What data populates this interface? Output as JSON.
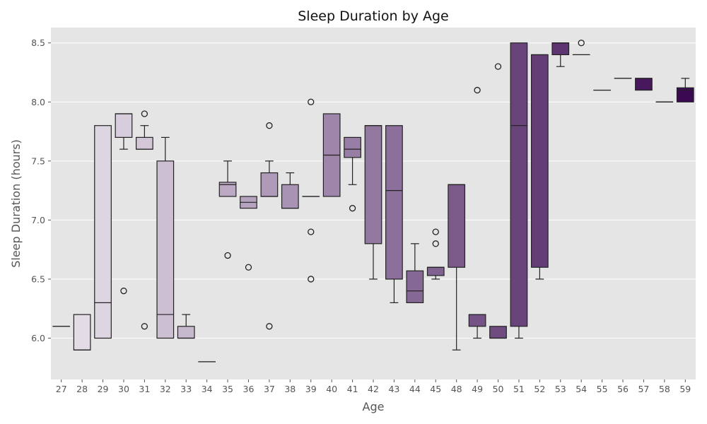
{
  "chart_data": {
    "type": "box",
    "title": "Sleep Duration by Age",
    "xlabel": "Age",
    "ylabel": "Sleep Duration (hours)",
    "ylim": [
      5.65,
      8.63
    ],
    "yticks": [
      "6.0",
      "6.5",
      "7.0",
      "7.5",
      "8.0",
      "8.5"
    ],
    "grid": true,
    "background": "#e5e5e5",
    "palette": [
      "#e9e3ec",
      "#3b0a52"
    ],
    "boxes": [
      {
        "age": "27",
        "q1": 6.1,
        "median": 6.1,
        "q3": 6.1,
        "whisker_low": 6.1,
        "whisker_high": 6.1,
        "outliers": []
      },
      {
        "age": "28",
        "q1": 5.9,
        "median": 5.9,
        "q3": 6.2,
        "whisker_low": 5.9,
        "whisker_high": 6.2,
        "outliers": []
      },
      {
        "age": "29",
        "q1": 6.0,
        "median": 6.3,
        "q3": 7.8,
        "whisker_low": 6.0,
        "whisker_high": 7.8,
        "outliers": []
      },
      {
        "age": "30",
        "q1": 7.7,
        "median": 7.9,
        "q3": 7.9,
        "whisker_low": 7.6,
        "whisker_high": 7.9,
        "outliers": [
          6.4
        ]
      },
      {
        "age": "31",
        "q1": 7.6,
        "median": 7.6,
        "q3": 7.7,
        "whisker_low": 7.6,
        "whisker_high": 7.8,
        "outliers": [
          7.9,
          6.1
        ]
      },
      {
        "age": "32",
        "q1": 6.0,
        "median": 6.2,
        "q3": 7.5,
        "whisker_low": 6.0,
        "whisker_high": 7.7,
        "outliers": []
      },
      {
        "age": "33",
        "q1": 6.0,
        "median": 6.0,
        "q3": 6.1,
        "whisker_low": 6.0,
        "whisker_high": 6.2,
        "outliers": []
      },
      {
        "age": "34",
        "q1": 5.8,
        "median": 5.8,
        "q3": 5.8,
        "whisker_low": 5.8,
        "whisker_high": 5.8,
        "outliers": []
      },
      {
        "age": "35",
        "q1": 7.2,
        "median": 7.3,
        "q3": 7.32,
        "whisker_low": 7.2,
        "whisker_high": 7.5,
        "outliers": [
          6.7
        ]
      },
      {
        "age": "36",
        "q1": 7.1,
        "median": 7.15,
        "q3": 7.2,
        "whisker_low": 7.1,
        "whisker_high": 7.2,
        "outliers": [
          6.6
        ]
      },
      {
        "age": "37",
        "q1": 7.2,
        "median": 7.2,
        "q3": 7.4,
        "whisker_low": 7.2,
        "whisker_high": 7.5,
        "outliers": [
          7.8,
          6.1
        ]
      },
      {
        "age": "38",
        "q1": 7.1,
        "median": 7.1,
        "q3": 7.3,
        "whisker_low": 7.1,
        "whisker_high": 7.4,
        "outliers": []
      },
      {
        "age": "39",
        "q1": 7.2,
        "median": 7.2,
        "q3": 7.2,
        "whisker_low": 7.2,
        "whisker_high": 7.2,
        "outliers": [
          8.0,
          6.9,
          6.5
        ]
      },
      {
        "age": "40",
        "q1": 7.2,
        "median": 7.55,
        "q3": 7.9,
        "whisker_low": 7.2,
        "whisker_high": 7.9,
        "outliers": []
      },
      {
        "age": "41",
        "q1": 7.53,
        "median": 7.6,
        "q3": 7.7,
        "whisker_low": 7.3,
        "whisker_high": 7.7,
        "outliers": [
          7.1
        ]
      },
      {
        "age": "42",
        "q1": 6.8,
        "median": 7.8,
        "q3": 7.8,
        "whisker_low": 6.5,
        "whisker_high": 7.8,
        "outliers": []
      },
      {
        "age": "43",
        "q1": 6.5,
        "median": 7.25,
        "q3": 7.8,
        "whisker_low": 6.3,
        "whisker_high": 7.8,
        "outliers": []
      },
      {
        "age": "44",
        "q1": 6.3,
        "median": 6.4,
        "q3": 6.57,
        "whisker_low": 6.3,
        "whisker_high": 6.8,
        "outliers": []
      },
      {
        "age": "45",
        "q1": 6.53,
        "median": 6.6,
        "q3": 6.6,
        "whisker_low": 6.5,
        "whisker_high": 6.6,
        "outliers": [
          6.9,
          6.8
        ]
      },
      {
        "age": "48",
        "q1": 6.6,
        "median": 7.3,
        "q3": 7.3,
        "whisker_low": 5.9,
        "whisker_high": 7.3,
        "outliers": []
      },
      {
        "age": "49",
        "q1": 6.1,
        "median": 6.2,
        "q3": 6.2,
        "whisker_low": 6.0,
        "whisker_high": 6.2,
        "outliers": [
          8.1
        ]
      },
      {
        "age": "50",
        "q1": 6.0,
        "median": 6.0,
        "q3": 6.1,
        "whisker_low": 6.0,
        "whisker_high": 6.1,
        "outliers": [
          8.3
        ]
      },
      {
        "age": "51",
        "q1": 6.1,
        "median": 7.8,
        "q3": 8.5,
        "whisker_low": 6.0,
        "whisker_high": 8.5,
        "outliers": []
      },
      {
        "age": "52",
        "q1": 6.6,
        "median": 8.4,
        "q3": 8.4,
        "whisker_low": 6.5,
        "whisker_high": 8.4,
        "outliers": []
      },
      {
        "age": "53",
        "q1": 8.4,
        "median": 8.5,
        "q3": 8.5,
        "whisker_low": 8.3,
        "whisker_high": 8.5,
        "outliers": []
      },
      {
        "age": "54",
        "q1": 8.4,
        "median": 8.4,
        "q3": 8.4,
        "whisker_low": 8.4,
        "whisker_high": 8.4,
        "outliers": [
          8.5
        ]
      },
      {
        "age": "55",
        "q1": 8.1,
        "median": 8.1,
        "q3": 8.1,
        "whisker_low": 8.1,
        "whisker_high": 8.1,
        "outliers": []
      },
      {
        "age": "56",
        "q1": 8.2,
        "median": 8.2,
        "q3": 8.2,
        "whisker_low": 8.2,
        "whisker_high": 8.2,
        "outliers": []
      },
      {
        "age": "57",
        "q1": 8.1,
        "median": 8.2,
        "q3": 8.2,
        "whisker_low": 8.1,
        "whisker_high": 8.2,
        "outliers": []
      },
      {
        "age": "58",
        "q1": 8.0,
        "median": 8.0,
        "q3": 8.0,
        "whisker_low": 8.0,
        "whisker_high": 8.0,
        "outliers": []
      },
      {
        "age": "59",
        "q1": 8.0,
        "median": 8.1,
        "q3": 8.12,
        "whisker_low": 8.0,
        "whisker_high": 8.2,
        "outliers": []
      }
    ]
  }
}
